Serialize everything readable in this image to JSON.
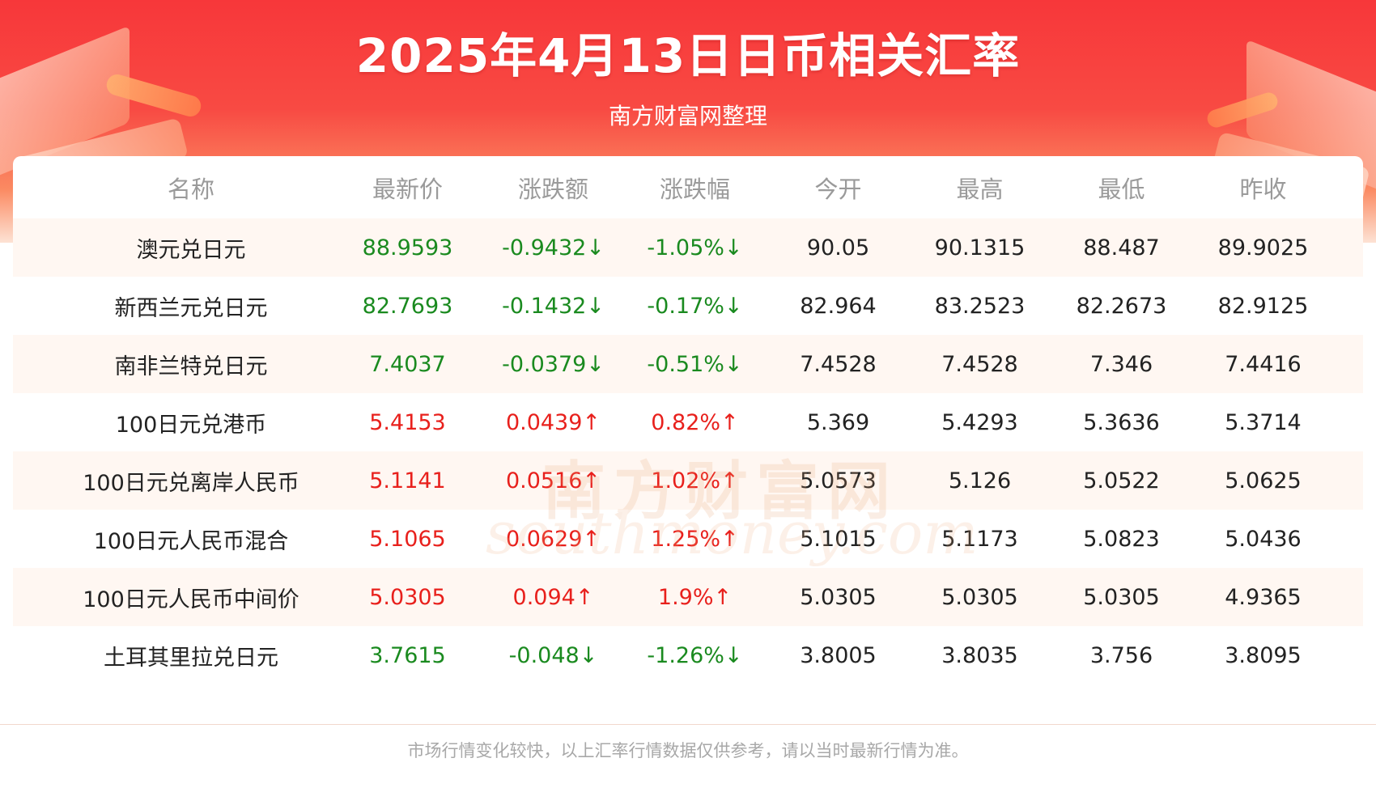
{
  "header": {
    "title": "2025年4月13日日币相关汇率",
    "subtitle": "南方财富网整理"
  },
  "colors": {
    "banner_red": "#f7373a",
    "up_red": "#e8201c",
    "down_green": "#1a8a1f",
    "alt_row": "#fff7f2"
  },
  "table": {
    "columns": [
      "名称",
      "最新价",
      "涨跌额",
      "涨跌幅",
      "今开",
      "最高",
      "最低",
      "昨收"
    ],
    "rows": [
      {
        "dir": "down",
        "cells": [
          "澳元兑日元",
          "88.9593",
          "-0.9432↓",
          "-1.05%↓",
          "90.05",
          "90.1315",
          "88.487",
          "89.9025"
        ]
      },
      {
        "dir": "down",
        "cells": [
          "新西兰元兑日元",
          "82.7693",
          "-0.1432↓",
          "-0.17%↓",
          "82.964",
          "83.2523",
          "82.2673",
          "82.9125"
        ]
      },
      {
        "dir": "down",
        "cells": [
          "南非兰特兑日元",
          "7.4037",
          "-0.0379↓",
          "-0.51%↓",
          "7.4528",
          "7.4528",
          "7.346",
          "7.4416"
        ]
      },
      {
        "dir": "up",
        "cells": [
          "100日元兑港币",
          "5.4153",
          "0.0439↑",
          "0.82%↑",
          "5.369",
          "5.4293",
          "5.3636",
          "5.3714"
        ]
      },
      {
        "dir": "up",
        "cells": [
          "100日元兑离岸人民币",
          "5.1141",
          "0.0516↑",
          "1.02%↑",
          "5.0573",
          "5.126",
          "5.0522",
          "5.0625"
        ]
      },
      {
        "dir": "up",
        "cells": [
          "100日元人民币混合",
          "5.1065",
          "0.0629↑",
          "1.25%↑",
          "5.1015",
          "5.1173",
          "5.0823",
          "5.0436"
        ]
      },
      {
        "dir": "up",
        "cells": [
          "100日元人民币中间价",
          "5.0305",
          "0.094↑",
          "1.9%↑",
          "5.0305",
          "5.0305",
          "5.0305",
          "4.9365"
        ]
      },
      {
        "dir": "down",
        "cells": [
          "土耳其里拉兑日元",
          "3.7615",
          "-0.048↓",
          "-1.26%↓",
          "3.8005",
          "3.8035",
          "3.756",
          "3.8095"
        ]
      }
    ]
  },
  "watermark": {
    "cn": "南方财富网",
    "en": "southmoney.com"
  },
  "footer": {
    "note": "市场行情变化较快，以上汇率行情数据仅供参考，请以当时最新行情为准。"
  }
}
